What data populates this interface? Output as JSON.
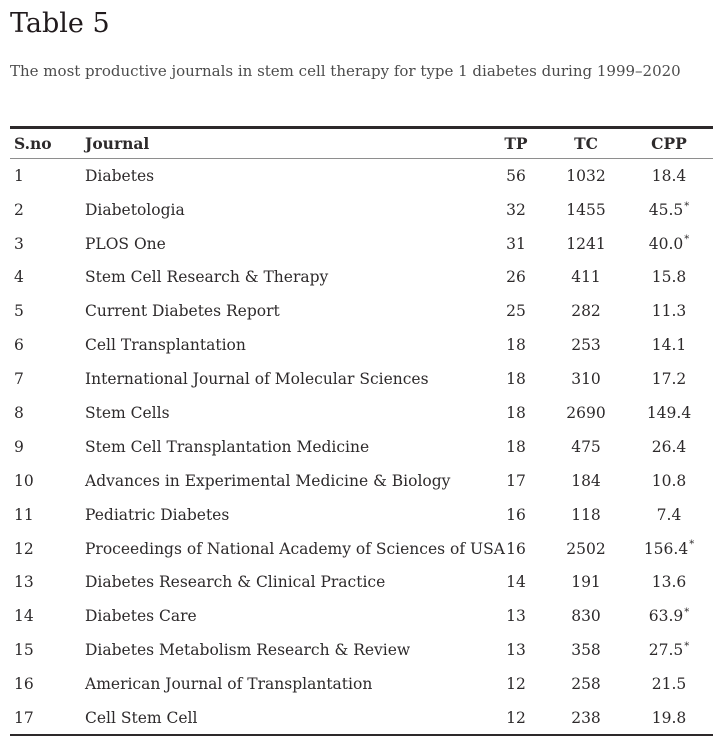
{
  "page": {
    "title": "Table 5",
    "caption": "The most productive journals in stem cell therapy for type 1 diabetes during 1999–2020"
  },
  "colors": {
    "title_text": "#201a1c",
    "caption_text": "#4c4c4c",
    "body_text": "#2d2a2b",
    "rule_dark": "#2d292a",
    "rule_light": "#8e8e8e",
    "background": "#ffffff"
  },
  "table": {
    "columns": [
      "S.no",
      "Journal",
      "TP",
      "TC",
      "CPP"
    ],
    "footnote_marker": "*",
    "rows": [
      {
        "s_no": "1",
        "journal": "Diabetes",
        "tp": "56",
        "tc": "1032",
        "cpp": "18.4",
        "starred": false
      },
      {
        "s_no": "2",
        "journal": "Diabetologia",
        "tp": "32",
        "tc": "1455",
        "cpp": "45.5",
        "starred": true
      },
      {
        "s_no": "3",
        "journal": "PLOS One",
        "tp": "31",
        "tc": "1241",
        "cpp": "40.0",
        "starred": true
      },
      {
        "s_no": "4",
        "journal": "Stem Cell Research & Therapy",
        "tp": "26",
        "tc": "411",
        "cpp": "15.8",
        "starred": false
      },
      {
        "s_no": "5",
        "journal": "Current Diabetes Report",
        "tp": "25",
        "tc": "282",
        "cpp": "11.3",
        "starred": false
      },
      {
        "s_no": "6",
        "journal": "Cell Transplantation",
        "tp": "18",
        "tc": "253",
        "cpp": "14.1",
        "starred": false
      },
      {
        "s_no": "7",
        "journal": "International Journal of Molecular Sciences",
        "tp": "18",
        "tc": "310",
        "cpp": "17.2",
        "starred": false
      },
      {
        "s_no": "8",
        "journal": "Stem Cells",
        "tp": "18",
        "tc": "2690",
        "cpp": "149.4",
        "starred": false
      },
      {
        "s_no": "9",
        "journal": "Stem Cell Transplantation Medicine",
        "tp": "18",
        "tc": "475",
        "cpp": "26.4",
        "starred": false
      },
      {
        "s_no": "10",
        "journal": "Advances in Experimental Medicine & Biology",
        "tp": "17",
        "tc": "184",
        "cpp": "10.8",
        "starred": false
      },
      {
        "s_no": "11",
        "journal": "Pediatric Diabetes",
        "tp": "16",
        "tc": "118",
        "cpp": "7.4",
        "starred": false
      },
      {
        "s_no": "12",
        "journal": "Proceedings of National Academy of Sciences of USA",
        "tp": "16",
        "tc": "2502",
        "cpp": "156.4",
        "starred": true
      },
      {
        "s_no": "13",
        "journal": "Diabetes Research & Clinical Practice",
        "tp": "14",
        "tc": "191",
        "cpp": "13.6",
        "starred": false
      },
      {
        "s_no": "14",
        "journal": "Diabetes Care",
        "tp": "13",
        "tc": "830",
        "cpp": "63.9",
        "starred": true
      },
      {
        "s_no": "15",
        "journal": "Diabetes Metabolism Research & Review",
        "tp": "13",
        "tc": "358",
        "cpp": "27.5",
        "starred": true
      },
      {
        "s_no": "16",
        "journal": "American Journal of Transplantation",
        "tp": "12",
        "tc": "258",
        "cpp": "21.5",
        "starred": false
      },
      {
        "s_no": "17",
        "journal": "Cell Stem Cell",
        "tp": "12",
        "tc": "238",
        "cpp": "19.8",
        "starred": false
      }
    ]
  }
}
